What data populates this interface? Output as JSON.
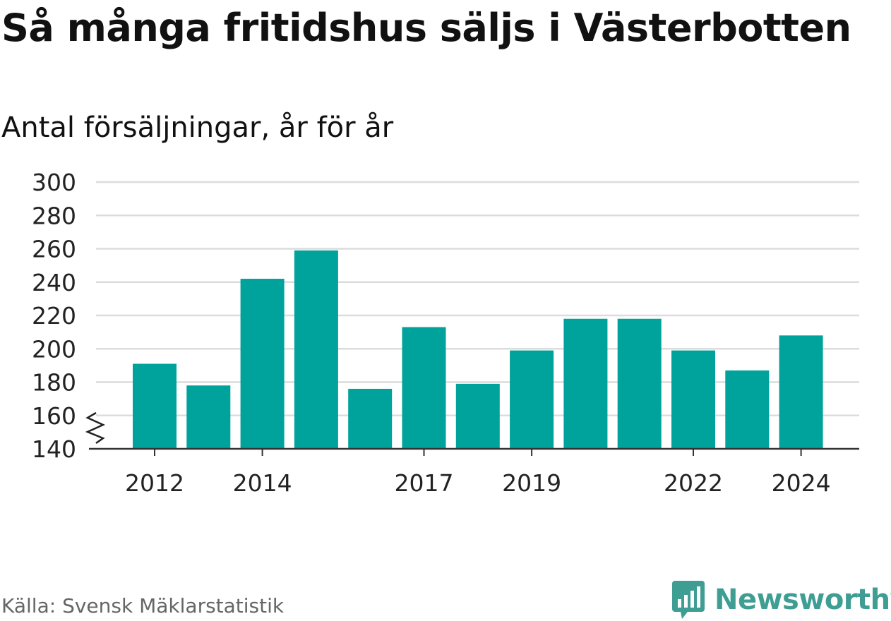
{
  "title": "Så många fritidshus säljs i Västerbotten",
  "subtitle": "Antal försäljningar, år för år",
  "source": "Källa: Svensk Mäklarstatistik",
  "brand": {
    "name": "Newsworthy",
    "color": "#3f9e93",
    "icon": "newsworthy-logo-icon"
  },
  "chart_data": {
    "type": "bar",
    "categories": [
      "2012",
      "2013",
      "2014",
      "2015",
      "2016",
      "2017",
      "2018",
      "2019",
      "2020",
      "2021",
      "2022",
      "2023",
      "2024"
    ],
    "values": [
      191,
      178,
      242,
      259,
      176,
      213,
      179,
      199,
      218,
      218,
      199,
      187,
      208
    ],
    "x_tick_labels": [
      "2012",
      "2014",
      "2017",
      "2019",
      "2022",
      "2024"
    ],
    "y_ticks": [
      "140",
      "160",
      "180",
      "200",
      "220",
      "240",
      "260",
      "280",
      "300"
    ],
    "ylim": [
      140,
      300
    ],
    "axis_break": true,
    "grid": true,
    "bar_color": "#00a39b"
  }
}
